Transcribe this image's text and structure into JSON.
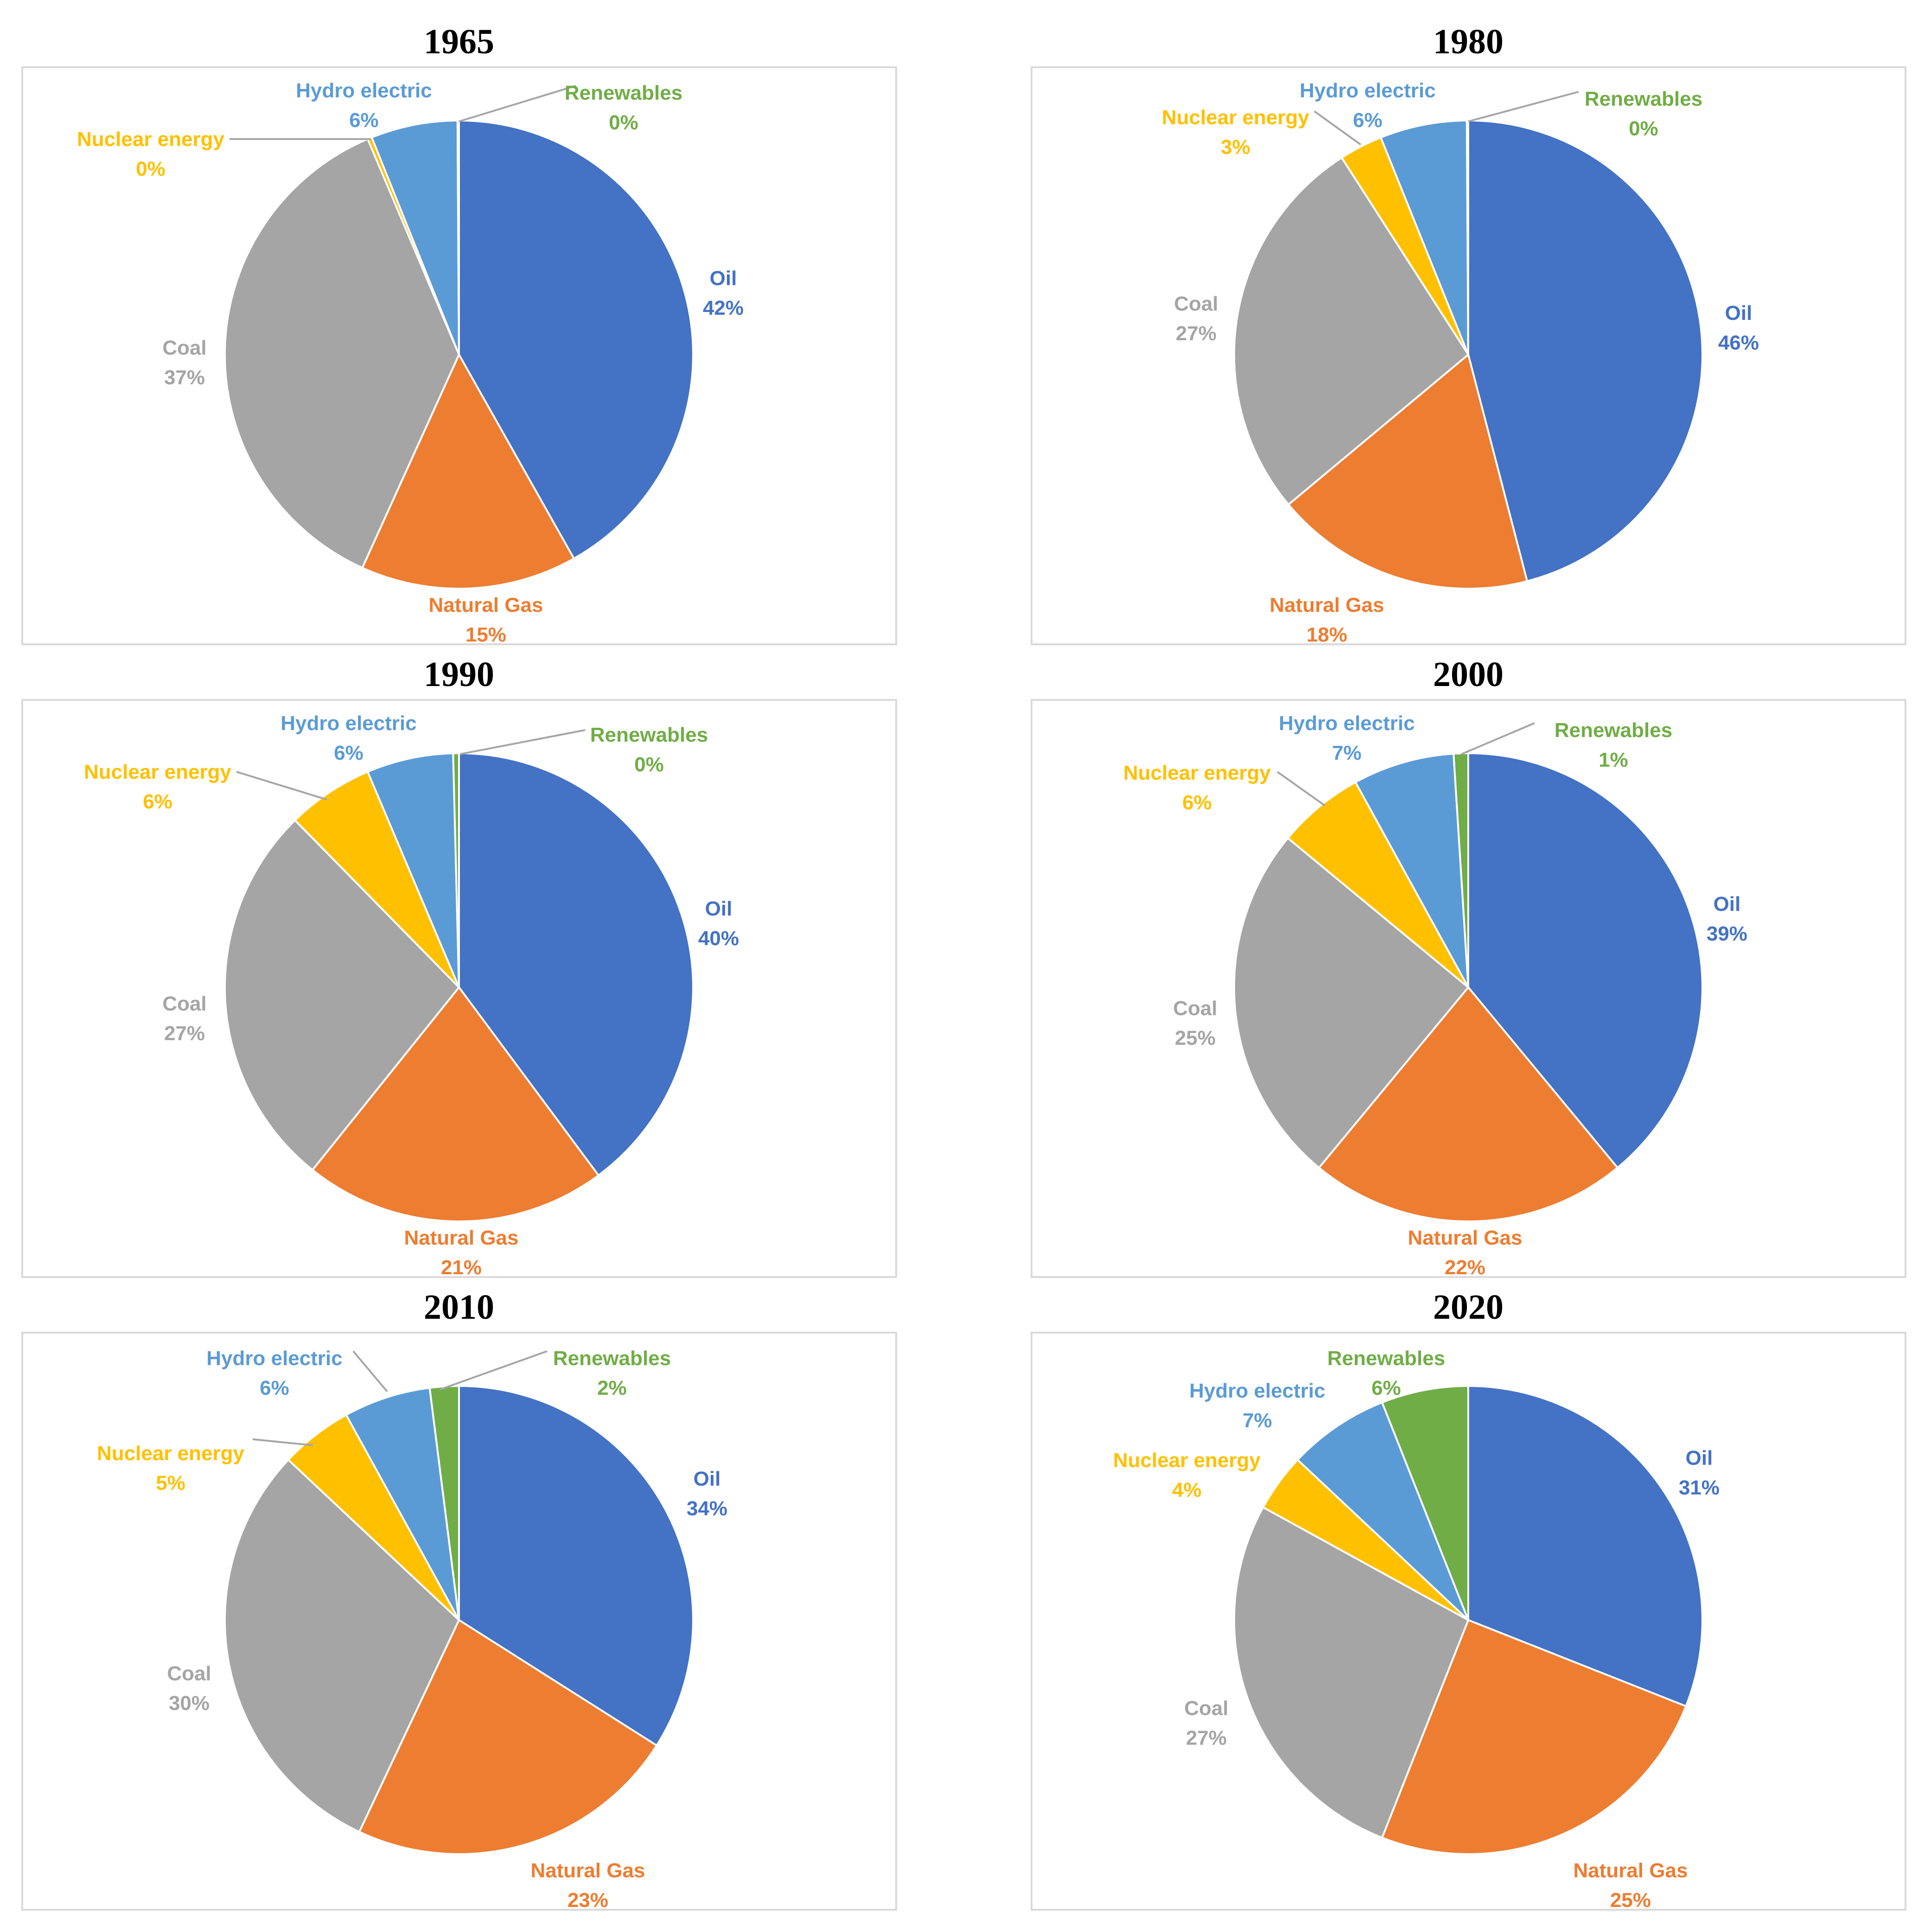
{
  "colors": {
    "Oil": "#4472C4",
    "Natural Gas": "#ED7D31",
    "Coal": "#A5A5A5",
    "Nuclear energy": "#FFC000",
    "Hydro electric": "#5B9BD5",
    "Renewables": "#70AD47"
  },
  "chart_data": [
    {
      "type": "pie",
      "title": "1965",
      "categories": [
        "Oil",
        "Natural Gas",
        "Coal",
        "Nuclear energy",
        "Hydro electric",
        "Renewables"
      ],
      "values": [
        42,
        15,
        37,
        0.3,
        6,
        0.1
      ],
      "labels": [
        "42%",
        "15%",
        "37%",
        "0%",
        "6%",
        "0%"
      ]
    },
    {
      "type": "pie",
      "title": "1980",
      "categories": [
        "Oil",
        "Natural Gas",
        "Coal",
        "Nuclear energy",
        "Hydro electric",
        "Renewables"
      ],
      "values": [
        46,
        18,
        27,
        3,
        6,
        0.1
      ],
      "labels": [
        "46%",
        "18%",
        "27%",
        "3%",
        "6%",
        "0%"
      ]
    },
    {
      "type": "pie",
      "title": "1990",
      "categories": [
        "Oil",
        "Natural Gas",
        "Coal",
        "Nuclear energy",
        "Hydro electric",
        "Renewables"
      ],
      "values": [
        40,
        21,
        27,
        6,
        6,
        0.4
      ],
      "labels": [
        "40%",
        "21%",
        "27%",
        "6%",
        "6%",
        "0%"
      ]
    },
    {
      "type": "pie",
      "title": "2000",
      "categories": [
        "Oil",
        "Natural Gas",
        "Coal",
        "Nuclear energy",
        "Hydro electric",
        "Renewables"
      ],
      "values": [
        39,
        22,
        25,
        6,
        7,
        1
      ],
      "labels": [
        "39%",
        "22%",
        "25%",
        "6%",
        "7%",
        "1%"
      ]
    },
    {
      "type": "pie",
      "title": "2010",
      "categories": [
        "Oil",
        "Natural Gas",
        "Coal",
        "Nuclear energy",
        "Hydro electric",
        "Renewables"
      ],
      "values": [
        34,
        23,
        30,
        5,
        6,
        2
      ],
      "labels": [
        "34%",
        "23%",
        "30%",
        "5%",
        "6%",
        "2%"
      ]
    },
    {
      "type": "pie",
      "title": "2020",
      "categories": [
        "Oil",
        "Natural Gas",
        "Coal",
        "Nuclear energy",
        "Hydro electric",
        "Renewables"
      ],
      "values": [
        31,
        25,
        27,
        4,
        7,
        6
      ],
      "labels": [
        "31%",
        "25%",
        "27%",
        "4%",
        "7%",
        "6%"
      ]
    }
  ]
}
